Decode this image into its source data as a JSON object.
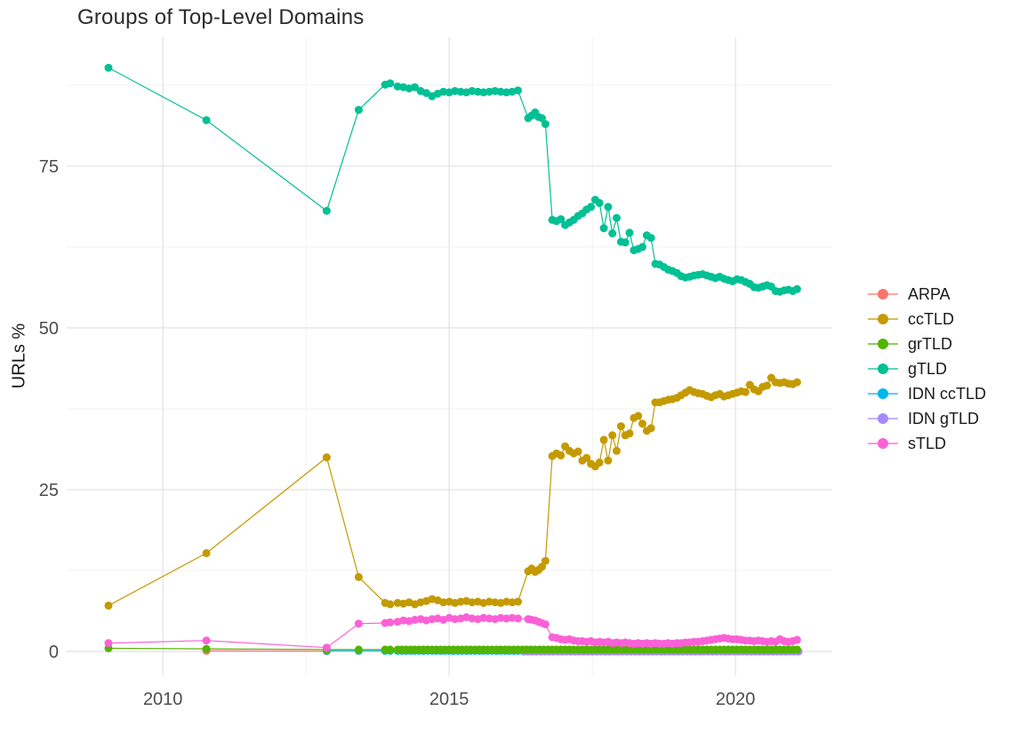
{
  "chart_data": {
    "type": "line",
    "title": "Groups of Top-Level Domains",
    "xlabel": "",
    "ylabel": "URLs %",
    "xlim": [
      2008.32,
      2021.69
    ],
    "ylim": [
      -3.7,
      94.9
    ],
    "x_major_ticks": [
      2010,
      2015,
      2020
    ],
    "x_tick_labels": [
      "2010",
      "2015",
      "2020"
    ],
    "x_minor_ticks": [
      2012.5,
      2017.5
    ],
    "y_major_ticks": [
      0,
      25,
      50,
      75
    ],
    "y_tick_labels": [
      "0",
      "25",
      "50",
      "75"
    ],
    "y_minor_ticks": [
      12.5,
      37.5,
      62.5,
      87.5
    ],
    "grid": "major+minor",
    "legend_position": "right",
    "grid_major_color": "#e4e4e4",
    "grid_minor_color": "#f2f2f2",
    "tick_label_color": "#4d4d4d",
    "draw_order": [
      "ARPA",
      "ccTLD",
      "IDN ccTLD",
      "IDN gTLD",
      "grTLD",
      "gTLD",
      "sTLD"
    ],
    "series": [
      {
        "name": "ARPA",
        "color": "#F8766D",
        "segments": [
          {
            "pairs": [
              [
                2010.76,
                0.1
              ],
              [
                2012.86,
                0.05
              ]
            ]
          }
        ]
      },
      {
        "name": "ccTLD",
        "color": "#C49A00",
        "segments": [
          {
            "pairs": [
              [
                2009.05,
                7.1
              ],
              [
                2010.76,
                15.2
              ],
              [
                2012.86,
                30.0
              ],
              [
                2013.42,
                11.5
              ],
              [
                2013.88,
                7.5
              ],
              [
                2013.97,
                7.3
              ]
            ]
          },
          {
            "x0": 2014.1,
            "dx": 0.1,
            "values": [
              7.5,
              7.4,
              7.6,
              7.3,
              7.6,
              7.8,
              8.1,
              7.9,
              7.6,
              7.7,
              7.5,
              7.7,
              7.8,
              7.6,
              7.7,
              7.5,
              7.7,
              7.6,
              7.5,
              7.7,
              7.6,
              7.7
            ]
          },
          {
            "x0": 2016.38,
            "dx": 0.06,
            "values": [
              12.4,
              12.8,
              12.3,
              12.6,
              13.1,
              14.0
            ]
          },
          {
            "x0": 2016.8,
            "dx": 0.075,
            "values": [
              30.2,
              30.6,
              30.3,
              31.7,
              31.0,
              30.6,
              30.9,
              29.5,
              29.9,
              29.0,
              28.6,
              29.2,
              32.7,
              29.5,
              33.4,
              31.0,
              34.8,
              33.4,
              33.7,
              36.1,
              36.4,
              35.2,
              34.1,
              34.5,
              38.5,
              38.5,
              38.7,
              38.9,
              39.0,
              39.2,
              39.6,
              40.0,
              40.4,
              40.1,
              39.9,
              39.8,
              39.5,
              39.3,
              39.6,
              39.8,
              39.4,
              39.6,
              39.8,
              40.0,
              40.2,
              40.1,
              41.2,
              40.5,
              40.2,
              40.9,
              41.1,
              42.3,
              41.6,
              41.5,
              41.6,
              41.4,
              41.3,
              41.6
            ]
          }
        ]
      },
      {
        "name": "grTLD",
        "color": "#53B400",
        "segments": [
          {
            "pairs": [
              [
                2009.05,
                0.5
              ],
              [
                2010.76,
                0.4
              ],
              [
                2012.86,
                0.3
              ],
              [
                2013.42,
                0.3
              ],
              [
                2013.88,
                0.3
              ],
              [
                2013.97,
                0.3
              ]
            ]
          },
          {
            "x0": 2014.1,
            "dx": 0.075,
            "n": 94,
            "const": 0.3
          }
        ]
      },
      {
        "name": "gTLD",
        "color": "#00C094",
        "segments": [
          {
            "pairs": [
              [
                2009.05,
                90.2
              ],
              [
                2010.76,
                82.1
              ],
              [
                2012.86,
                68.1
              ],
              [
                2013.42,
                83.7
              ],
              [
                2013.88,
                87.6
              ],
              [
                2013.97,
                87.8
              ]
            ]
          },
          {
            "x0": 2014.1,
            "dx": 0.1,
            "values": [
              87.3,
              87.2,
              87.0,
              87.2,
              86.6,
              86.3,
              85.8,
              86.2,
              86.5,
              86.4,
              86.6,
              86.5,
              86.4,
              86.6,
              86.5,
              86.4,
              86.5,
              86.6,
              86.5,
              86.4,
              86.5,
              86.7
            ]
          },
          {
            "x0": 2016.38,
            "dx": 0.06,
            "values": [
              82.4,
              82.8,
              83.3,
              82.6,
              82.4,
              81.5
            ]
          },
          {
            "x0": 2016.8,
            "dx": 0.075,
            "values": [
              66.7,
              66.5,
              66.8,
              65.9,
              66.3,
              66.7,
              67.3,
              67.7,
              68.3,
              68.7,
              69.8,
              69.3,
              65.4,
              68.7,
              64.6,
              67.0,
              63.3,
              63.2,
              64.7,
              62.0,
              62.2,
              62.5,
              64.3,
              63.9,
              59.9,
              59.8,
              59.4,
              59.0,
              58.8,
              58.5,
              58.0,
              57.8,
              57.9,
              58.1,
              58.2,
              58.3,
              58.1,
              57.9,
              57.7,
              57.9,
              57.6,
              57.4,
              57.2,
              57.5,
              57.4,
              57.1,
              56.8,
              56.3,
              56.2,
              56.4,
              56.6,
              56.4,
              55.7,
              55.6,
              55.8,
              55.9,
              55.7,
              56.0
            ]
          }
        ]
      },
      {
        "name": "IDN ccTLD",
        "color": "#00B6EB",
        "segments": [
          {
            "pairs": [
              [
                2012.86,
                0.1
              ],
              [
                2013.42,
                0.1
              ],
              [
                2013.88,
                0.1
              ],
              [
                2013.97,
                0.1
              ]
            ]
          },
          {
            "x0": 2014.1,
            "dx": 0.075,
            "n": 94,
            "const": 0.1
          }
        ]
      },
      {
        "name": "IDN gTLD",
        "color": "#A58AFF",
        "segments": [
          {
            "x0": 2016.3,
            "dx": 0.075,
            "n": 65,
            "const": 0.0
          }
        ]
      },
      {
        "name": "sTLD",
        "color": "#FB61D7",
        "segments": [
          {
            "pairs": [
              [
                2009.05,
                1.3
              ],
              [
                2010.76,
                1.7
              ],
              [
                2012.86,
                0.6
              ],
              [
                2013.42,
                4.3
              ],
              [
                2013.88,
                4.4
              ],
              [
                2013.97,
                4.5
              ]
            ]
          },
          {
            "x0": 2014.1,
            "dx": 0.1,
            "values": [
              4.6,
              4.8,
              4.7,
              4.9,
              5.0,
              4.8,
              5.0,
              5.1,
              4.9,
              5.2,
              5.0,
              5.1,
              5.3,
              5.1,
              5.0,
              5.2,
              5.1,
              5.0,
              5.2,
              5.1,
              5.2,
              5.1
            ]
          },
          {
            "x0": 2016.38,
            "dx": 0.06,
            "values": [
              5.0,
              4.9,
              4.8,
              4.6,
              4.4,
              4.2
            ]
          },
          {
            "x0": 2016.8,
            "dx": 0.075,
            "values": [
              2.2,
              2.1,
              1.9,
              1.8,
              1.9,
              1.7,
              1.6,
              1.6,
              1.5,
              1.6,
              1.4,
              1.5,
              1.4,
              1.5,
              1.3,
              1.4,
              1.3,
              1.4,
              1.3,
              1.2,
              1.3,
              1.2,
              1.3,
              1.2,
              1.3,
              1.2,
              1.2,
              1.3,
              1.2,
              1.3,
              1.3,
              1.4,
              1.4,
              1.5,
              1.5,
              1.6,
              1.7,
              1.8,
              1.9,
              2.0,
              2.1,
              2.0,
              1.9,
              1.9,
              1.8,
              1.7,
              1.7,
              1.6,
              1.7,
              1.6,
              1.5,
              1.6,
              1.5,
              1.9,
              1.6,
              1.5,
              1.6,
              1.8
            ]
          }
        ]
      }
    ]
  }
}
